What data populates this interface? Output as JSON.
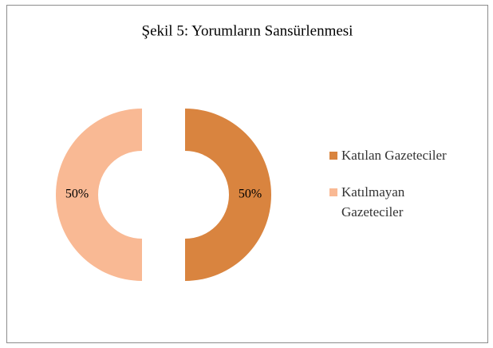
{
  "chart_data": {
    "type": "donut",
    "title": "Şekil 5: Yorumların Sansürlenmesi",
    "categories": [
      "Katılan Gazeteciler",
      "Katılmayan Gazeteciler"
    ],
    "values": [
      50,
      50
    ],
    "value_labels": [
      "50%",
      "50%"
    ],
    "colors": [
      "#d9843f",
      "#f9b994"
    ],
    "legend": "right"
  }
}
